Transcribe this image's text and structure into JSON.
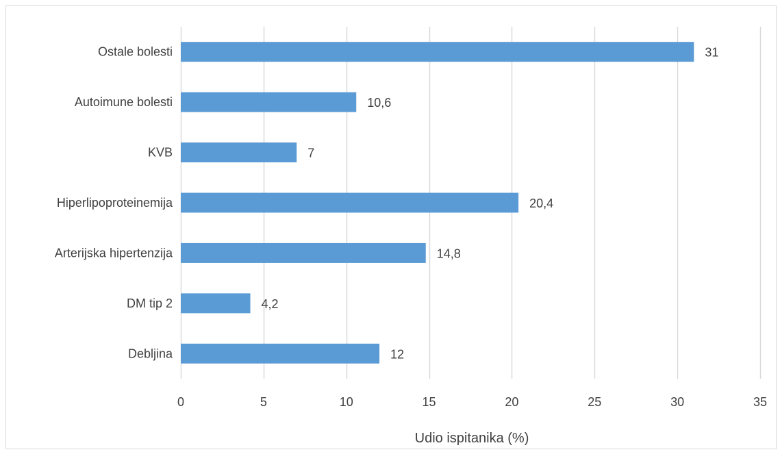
{
  "chart_data": {
    "type": "bar",
    "orientation": "horizontal",
    "categories": [
      "Ostale bolesti",
      "Autoimune bolesti",
      "KVB",
      "Hiperlipoproteinemija",
      "Arterijska hipertenzija",
      "DM tip 2",
      "Debljina"
    ],
    "values": [
      31,
      10.6,
      7,
      20.4,
      14.8,
      4.2,
      12
    ],
    "value_labels": [
      "31",
      "10,6",
      "7",
      "20,4",
      "14,8",
      "4,2",
      "12"
    ],
    "title": "",
    "xlabel": "Udio ispitanika (%)",
    "ylabel": "",
    "xlim": [
      0,
      35
    ],
    "xticks": [
      0,
      5,
      10,
      15,
      20,
      25,
      30,
      35
    ],
    "xtick_labels": [
      "0",
      "5",
      "10",
      "15",
      "20",
      "25",
      "30",
      "35"
    ],
    "grid": "vertical",
    "legend": "none",
    "bar_color": "#5b9bd5",
    "grid_color": "#d9d9d9",
    "text_color": "#404040"
  }
}
